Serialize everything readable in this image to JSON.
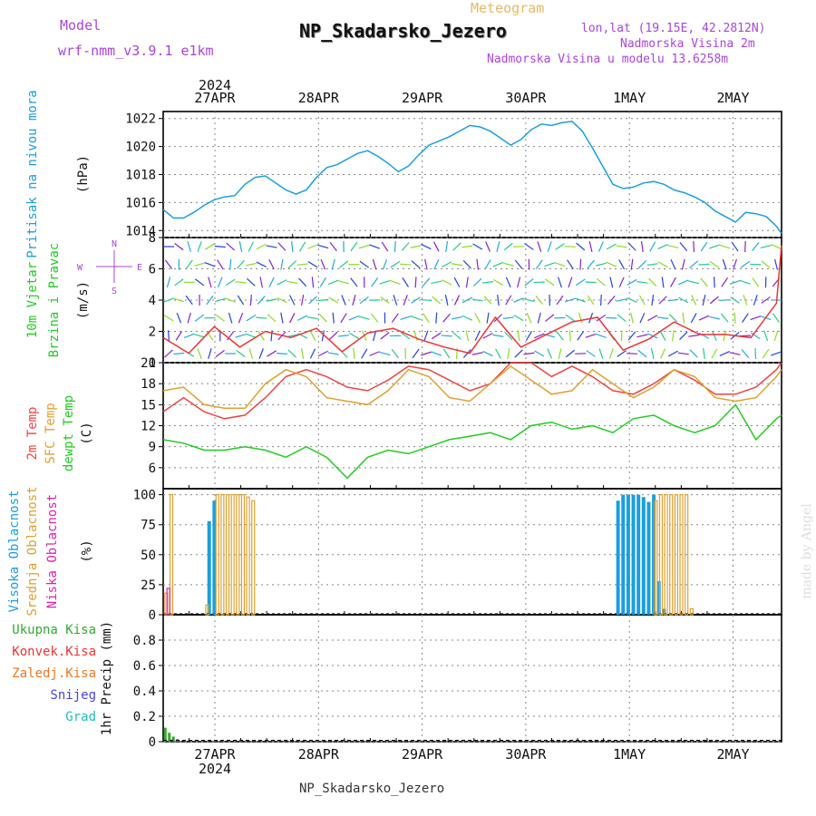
{
  "header": {
    "model_label": "Model",
    "model_name": "wrf-nmm_v3.9.1  e1km",
    "meteogram_label": "Meteogram",
    "station_title": "NP_Skadarsko_Jezero",
    "lonlat": "lon,lat (19.15E, 42.2812N)",
    "elevation": "Nadmorska Visina 2m",
    "model_elevation": "Nadmorska Visina u modelu 13.6258m",
    "footer_title": "NP_Skadarsko_Jezero",
    "credit": "made by Angel"
  },
  "colors": {
    "pressure": "#1a9fe0",
    "temp2m": "#ee4444",
    "sfc_temp": "#e0a030",
    "dewpoint": "#22cc22",
    "cloud_high": "#1a9fe0",
    "cloud_mid": "#e0a030",
    "cloud_low": "#dd22aa",
    "precip_total": "#33aa33",
    "precip_conv": "#ee3333",
    "precip_frozen": "#ee7722",
    "precip_snow": "#4444dd",
    "precip_grad": "#22bbbb",
    "wind_speed_line": "#ee3333",
    "model_text": "#aa44dd",
    "meteogram_text": "#e8b860"
  },
  "chart_data": [
    {
      "type": "line",
      "panel": "pressure",
      "title": "",
      "ylabel_lines": [
        "Pritisak na nivou mora",
        "(hPa)"
      ],
      "ylim": [
        1013.5,
        1022.5
      ],
      "yticks": [
        1014,
        1016,
        1018,
        1020,
        1022
      ],
      "xlim": [
        0,
        6.05
      ],
      "top_date_labels": [
        "27APR",
        "28APR",
        "29APR",
        "30APR",
        "1MAY",
        "2MAY"
      ],
      "top_year_label": "2024",
      "series": [
        {
          "x": [
            0,
            0.1,
            0.2,
            0.3,
            0.4,
            0.5,
            0.6,
            0.7,
            0.8,
            0.9,
            1.0,
            1.1,
            1.2,
            1.3,
            1.4,
            1.5,
            1.6,
            1.7,
            1.8,
            1.9,
            2.0,
            2.1,
            2.2,
            2.3,
            2.4,
            2.5,
            2.6,
            2.7,
            2.8,
            2.9,
            3.0,
            3.1,
            3.2,
            3.3,
            3.4,
            3.5,
            3.6,
            3.7,
            3.8,
            3.9,
            4.0,
            4.1,
            4.2,
            4.3,
            4.4,
            4.5,
            4.6,
            4.7,
            4.8,
            4.9,
            5.0,
            5.1,
            5.2,
            5.3,
            5.4,
            5.5,
            5.6,
            5.7,
            5.8,
            5.9,
            6.0,
            6.05
          ],
          "values": [
            1015.5,
            1014.9,
            1014.9,
            1015.3,
            1015.8,
            1016.2,
            1016.4,
            1016.5,
            1017.3,
            1017.8,
            1017.9,
            1017.4,
            1016.9,
            1016.6,
            1016.9,
            1017.8,
            1018.5,
            1018.7,
            1019.1,
            1019.5,
            1019.7,
            1019.3,
            1018.8,
            1018.2,
            1018.6,
            1019.4,
            1020.1,
            1020.4,
            1020.7,
            1021.1,
            1021.5,
            1021.4,
            1021.1,
            1020.6,
            1020.1,
            1020.5,
            1021.2,
            1021.6,
            1021.5,
            1021.7,
            1021.8,
            1021.1,
            1019.9,
            1018.6,
            1017.3,
            1017.0,
            1017.1,
            1017.4,
            1017.5,
            1017.3,
            1016.9,
            1016.7,
            1016.4,
            1016.0,
            1015.4,
            1015.0,
            1014.6,
            1015.3,
            1015.2,
            1015.0,
            1014.3,
            1013.8
          ]
        }
      ]
    },
    {
      "type": "line",
      "panel": "wind",
      "title": "",
      "ylabel_lines": [
        "10m Vjetar",
        "Brzina i Pravac",
        "(m/s)"
      ],
      "compass_labels": [
        "N",
        "E",
        "S",
        "W"
      ],
      "ylim": [
        0,
        8
      ],
      "yticks": [
        0,
        2,
        4,
        6,
        8
      ],
      "xlim": [
        0,
        6.05
      ],
      "series": [
        {
          "name": "",
          "x": [
            0,
            0.25,
            0.5,
            0.75,
            1.0,
            1.25,
            1.5,
            1.75,
            2.0,
            2.25,
            2.5,
            2.75,
            3.0,
            3.25,
            3.5,
            3.75,
            4.0,
            4.25,
            4.5,
            4.75,
            5.0,
            5.25,
            5.5,
            5.75,
            6.0,
            6.05
          ],
          "values": [
            1.6,
            0.6,
            2.3,
            1.0,
            2.0,
            1.6,
            2.2,
            0.7,
            1.9,
            2.2,
            1.5,
            1.0,
            0.6,
            2.9,
            1.0,
            1.8,
            2.6,
            2.9,
            0.8,
            1.5,
            2.6,
            1.8,
            1.8,
            1.6,
            3.8,
            7.5
          ]
        }
      ]
    },
    {
      "type": "line",
      "panel": "temperature",
      "title": "",
      "ylabel_lines": [
        "2m Temp",
        "SFC Temp",
        "dewpt Temp",
        "(C)"
      ],
      "ylim": [
        3,
        21
      ],
      "yticks": [
        6,
        9,
        12,
        15,
        18,
        21
      ],
      "xlim": [
        0,
        6.05
      ],
      "series": [
        {
          "name": "2m Temp",
          "x": [
            0,
            0.2,
            0.4,
            0.6,
            0.8,
            1.0,
            1.2,
            1.4,
            1.6,
            1.8,
            2.0,
            2.2,
            2.4,
            2.6,
            2.8,
            3.0,
            3.2,
            3.4,
            3.6,
            3.8,
            4.0,
            4.2,
            4.4,
            4.6,
            4.8,
            5.0,
            5.2,
            5.4,
            5.6,
            5.8,
            6.0,
            6.05
          ],
          "values": [
            14,
            16,
            14,
            13,
            13.5,
            16,
            19,
            20,
            19,
            17.5,
            17,
            18.5,
            20.5,
            20,
            18.5,
            17,
            18,
            21,
            21,
            19,
            20.5,
            19,
            17,
            16.5,
            18,
            20,
            18.5,
            16.5,
            16.5,
            17.5,
            20,
            21
          ]
        },
        {
          "name": "SFC Temp",
          "x": [
            0,
            0.2,
            0.4,
            0.6,
            0.8,
            1.0,
            1.2,
            1.4,
            1.6,
            1.8,
            2.0,
            2.2,
            2.4,
            2.6,
            2.8,
            3.0,
            3.2,
            3.4,
            3.6,
            3.8,
            4.0,
            4.2,
            4.4,
            4.6,
            4.8,
            5.0,
            5.2,
            5.4,
            5.6,
            5.8,
            6.0,
            6.05
          ],
          "values": [
            17,
            17.5,
            15,
            14.5,
            14.5,
            18,
            20,
            19,
            16,
            15.5,
            15,
            17,
            20,
            19,
            16,
            15.5,
            18,
            20.5,
            18.5,
            16.5,
            17,
            20,
            18,
            16,
            17.5,
            20,
            19,
            16,
            15.5,
            16,
            19,
            20
          ]
        },
        {
          "name": "dewpt Temp",
          "x": [
            0,
            0.2,
            0.4,
            0.6,
            0.8,
            1.0,
            1.2,
            1.4,
            1.6,
            1.8,
            2.0,
            2.2,
            2.4,
            2.6,
            2.8,
            3.0,
            3.2,
            3.4,
            3.6,
            3.8,
            4.0,
            4.2,
            4.4,
            4.6,
            4.8,
            5.0,
            5.2,
            5.4,
            5.6,
            5.8,
            6.0,
            6.05
          ],
          "values": [
            10,
            9.5,
            8.5,
            8.5,
            9,
            8.5,
            7.5,
            9,
            7.5,
            4.5,
            7.5,
            8.5,
            8,
            9,
            10,
            10.5,
            11,
            10,
            12,
            12.5,
            11.5,
            12,
            11,
            13,
            13.5,
            12,
            11,
            12,
            15,
            10,
            13,
            13.5
          ]
        }
      ]
    },
    {
      "type": "bar",
      "panel": "clouds",
      "title": "",
      "ylabel_lines": [
        "Visoka Oblacnost",
        "Srednja Oblacnost",
        "Niska Oblacnost",
        "(%)"
      ],
      "ylim": [
        0,
        105
      ],
      "yticks": [
        0,
        25,
        50,
        75,
        100
      ],
      "xlim": [
        0,
        6.05
      ],
      "series": [
        {
          "name": "Visoka Oblacnost",
          "x": [
            0.45,
            0.5,
            4.45,
            4.5,
            4.55,
            4.6,
            4.65,
            4.7,
            4.75,
            4.8,
            4.85,
            4.9
          ],
          "values": [
            78,
            95,
            95,
            100,
            100,
            100,
            100,
            98,
            94,
            100,
            28,
            5
          ]
        },
        {
          "name": "Srednja Oblacnost",
          "x": [
            0.03,
            0.08,
            0.43,
            0.53,
            0.58,
            0.63,
            0.68,
            0.73,
            0.78,
            0.83,
            0.88,
            4.82,
            4.87,
            4.92,
            4.97,
            5.02,
            5.07,
            5.12,
            5.17
          ],
          "values": [
            18,
            100,
            8,
            100,
            100,
            100,
            100,
            100,
            100,
            98,
            95,
            95,
            100,
            100,
            100,
            100,
            100,
            100,
            5
          ]
        },
        {
          "name": "Niska Oblacnost",
          "x": [
            0.05
          ],
          "values": [
            22
          ]
        }
      ]
    },
    {
      "type": "bar",
      "panel": "precipitation",
      "title": "",
      "ylabel_lines": [
        "1hr Precip (mm)"
      ],
      "legend_labels": [
        "Ukupna Kisa",
        "Konvek.Kisa",
        "Zaledj.Kisa",
        "Snijeg",
        "Grad"
      ],
      "ylim": [
        0,
        1.0
      ],
      "yticks": [
        0,
        0.2,
        0.4,
        0.6,
        0.8
      ],
      "xlim": [
        0,
        6.05
      ],
      "bottom_date_labels": [
        "27APR",
        "28APR",
        "29APR",
        "30APR",
        "1MAY",
        "2MAY"
      ],
      "bottom_year_label": "2024",
      "series": [
        {
          "name": "Ukupna Kisa",
          "x": [
            0.02,
            0.06,
            0.1,
            0.14
          ],
          "values": [
            0.11,
            0.07,
            0.04,
            0.02
          ]
        }
      ]
    }
  ]
}
